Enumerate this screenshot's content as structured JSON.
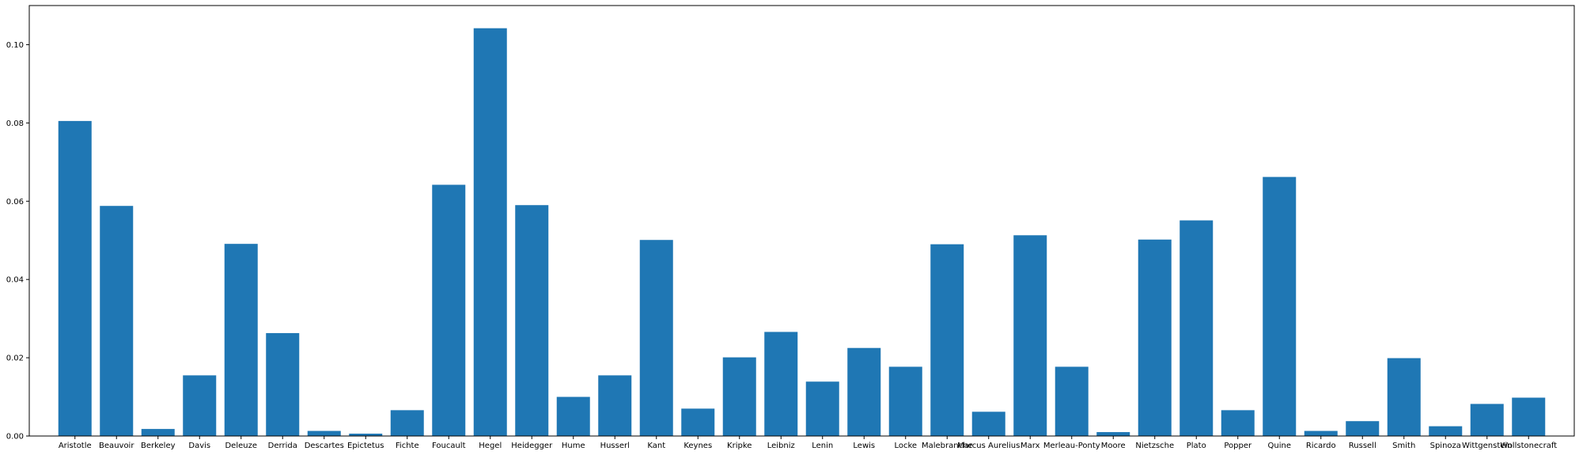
{
  "chart_data": {
    "type": "bar",
    "title": "",
    "xlabel": "",
    "ylabel": "",
    "ylim": [
      0,
      0.11
    ],
    "yticks": [
      "0.00",
      "0.02",
      "0.04",
      "0.06",
      "0.08",
      "0.10"
    ],
    "grid": false,
    "bar_color": "#1f77b4",
    "categories": [
      "Aristotle",
      "Beauvoir",
      "Berkeley",
      "Davis",
      "Deleuze",
      "Derrida",
      "Descartes",
      "Epictetus",
      "Fichte",
      "Foucault",
      "Hegel",
      "Heidegger",
      "Hume",
      "Husserl",
      "Kant",
      "Keynes",
      "Kripke",
      "Leibniz",
      "Lenin",
      "Lewis",
      "Locke",
      "Malebranche",
      "Marcus Aurelius",
      "Marx",
      "Merleau-Ponty",
      "Moore",
      "Nietzsche",
      "Plato",
      "Popper",
      "Quine",
      "Ricardo",
      "Russell",
      "Smith",
      "Spinoza",
      "Wittgenstein",
      "Wollstonecraft"
    ],
    "values": [
      0.0805,
      0.0588,
      0.0018,
      0.0155,
      0.0491,
      0.0263,
      0.0013,
      0.0006,
      0.0066,
      0.0642,
      0.1042,
      0.059,
      0.01,
      0.0155,
      0.0501,
      0.007,
      0.0201,
      0.0266,
      0.0139,
      0.0225,
      0.0177,
      0.049,
      0.0062,
      0.0513,
      0.0177,
      0.001,
      0.0502,
      0.0551,
      0.0066,
      0.0662,
      0.0013,
      0.0038,
      0.0199,
      0.0025,
      0.0082,
      0.0098
    ]
  }
}
